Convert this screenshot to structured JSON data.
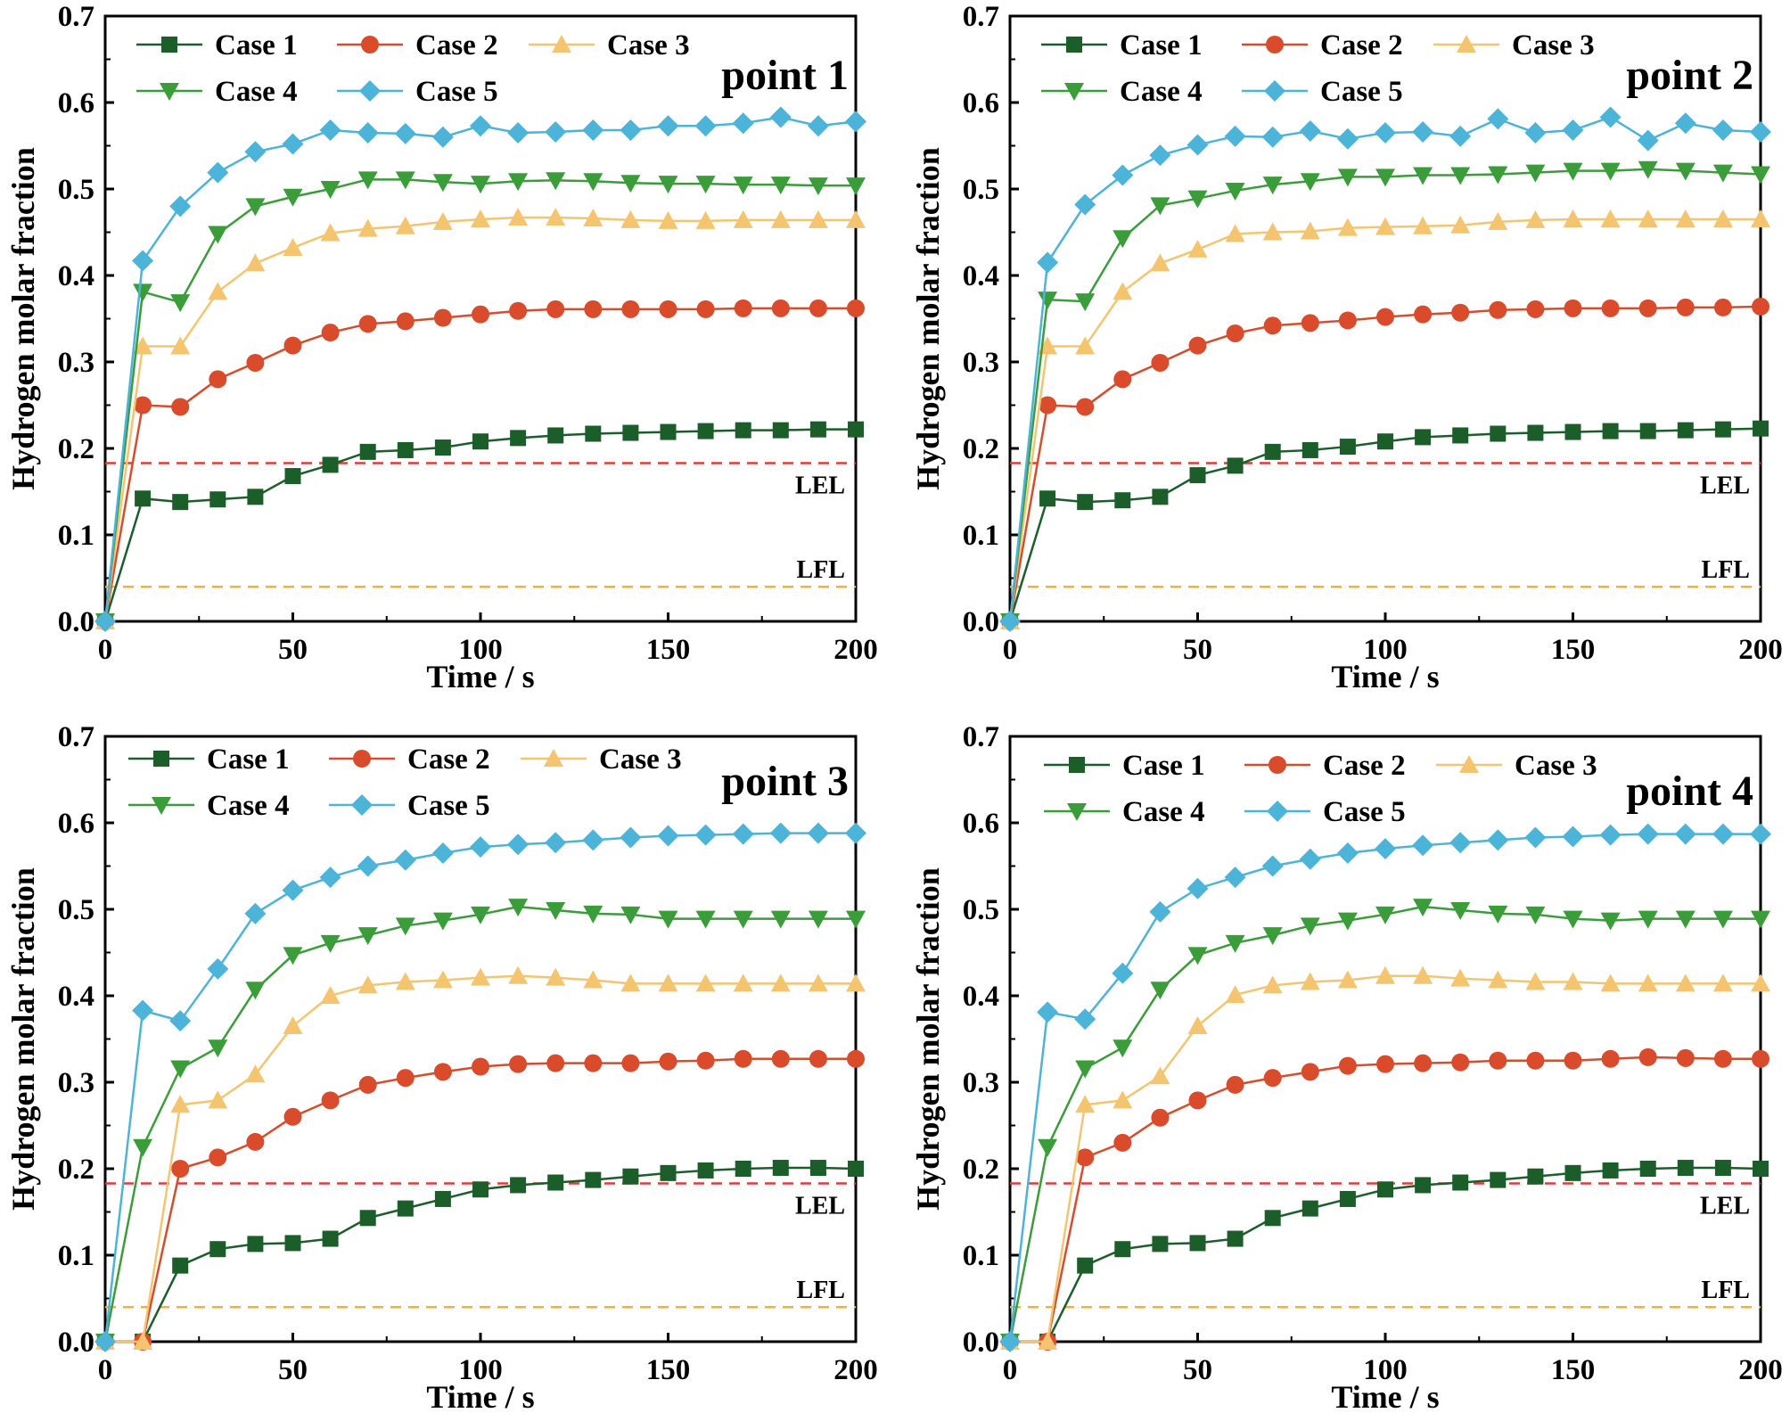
{
  "chart_data": [
    {
      "type": "line",
      "title": "point 1",
      "xlabel": "Time / s",
      "ylabel": "Hydrogen molar fraction",
      "xlim": [
        0,
        200
      ],
      "ylim": [
        0,
        0.7
      ],
      "xticks": [
        "0",
        "50",
        "100",
        "150",
        "200"
      ],
      "yticks": [
        "0.0",
        "0.1",
        "0.2",
        "0.3",
        "0.4",
        "0.5",
        "0.6",
        "0.7"
      ],
      "x": [
        0,
        10,
        20,
        30,
        40,
        50,
        60,
        70,
        80,
        90,
        100,
        110,
        120,
        130,
        140,
        150,
        160,
        170,
        180,
        190,
        200
      ],
      "series": [
        {
          "name": "Case 1",
          "color": "#1b5e2a",
          "marker": "square",
          "values": [
            0,
            0.142,
            0.138,
            0.141,
            0.144,
            0.168,
            0.181,
            0.196,
            0.198,
            0.201,
            0.208,
            0.212,
            0.215,
            0.217,
            0.218,
            0.219,
            0.22,
            0.221,
            0.221,
            0.222,
            0.222
          ]
        },
        {
          "name": "Case 2",
          "color": "#d94b2b",
          "marker": "circle",
          "values": [
            0,
            0.25,
            0.248,
            0.28,
            0.299,
            0.319,
            0.334,
            0.344,
            0.347,
            0.351,
            0.355,
            0.359,
            0.361,
            0.361,
            0.361,
            0.361,
            0.361,
            0.362,
            0.362,
            0.362,
            0.362
          ]
        },
        {
          "name": "Case 3",
          "color": "#f5c46e",
          "marker": "triangle-up",
          "values": [
            0,
            0.318,
            0.318,
            0.381,
            0.414,
            0.432,
            0.449,
            0.454,
            0.457,
            0.462,
            0.465,
            0.467,
            0.467,
            0.466,
            0.464,
            0.463,
            0.463,
            0.464,
            0.464,
            0.464,
            0.464
          ]
        },
        {
          "name": "Case 4",
          "color": "#3a9d3a",
          "marker": "triangle-down",
          "values": [
            0,
            0.381,
            0.369,
            0.448,
            0.48,
            0.491,
            0.5,
            0.511,
            0.511,
            0.508,
            0.506,
            0.509,
            0.51,
            0.509,
            0.507,
            0.506,
            0.506,
            0.505,
            0.505,
            0.504,
            0.504
          ]
        },
        {
          "name": "Case 5",
          "color": "#4cb3d9",
          "marker": "diamond",
          "values": [
            0,
            0.417,
            0.48,
            0.519,
            0.543,
            0.552,
            0.568,
            0.565,
            0.564,
            0.56,
            0.573,
            0.565,
            0.566,
            0.568,
            0.568,
            0.573,
            0.573,
            0.576,
            0.583,
            0.573,
            0.578
          ]
        }
      ],
      "reference_lines": [
        {
          "name": "LEL",
          "y": 0.183,
          "color": "#e53935"
        },
        {
          "name": "LFL",
          "y": 0.04,
          "color": "#f2b233"
        }
      ]
    },
    {
      "type": "line",
      "title": "point 2",
      "xlabel": "Time / s",
      "ylabel": "Hydrogen molar fraction",
      "xlim": [
        0,
        200
      ],
      "ylim": [
        0,
        0.7
      ],
      "xticks": [
        "0",
        "50",
        "100",
        "150",
        "200"
      ],
      "yticks": [
        "0.0",
        "0.1",
        "0.2",
        "0.3",
        "0.4",
        "0.5",
        "0.6",
        "0.7"
      ],
      "x": [
        0,
        10,
        20,
        30,
        40,
        50,
        60,
        70,
        80,
        90,
        100,
        110,
        120,
        130,
        140,
        150,
        160,
        170,
        180,
        190,
        200
      ],
      "series": [
        {
          "name": "Case 1",
          "color": "#1b5e2a",
          "marker": "square",
          "values": [
            0,
            0.142,
            0.138,
            0.14,
            0.144,
            0.169,
            0.18,
            0.196,
            0.198,
            0.202,
            0.208,
            0.213,
            0.215,
            0.217,
            0.218,
            0.219,
            0.22,
            0.22,
            0.221,
            0.222,
            0.223
          ]
        },
        {
          "name": "Case 2",
          "color": "#d94b2b",
          "marker": "circle",
          "values": [
            0,
            0.25,
            0.248,
            0.28,
            0.299,
            0.319,
            0.333,
            0.342,
            0.345,
            0.348,
            0.352,
            0.355,
            0.357,
            0.36,
            0.361,
            0.362,
            0.362,
            0.362,
            0.363,
            0.363,
            0.364
          ]
        },
        {
          "name": "Case 3",
          "color": "#f5c46e",
          "marker": "triangle-up",
          "values": [
            0,
            0.318,
            0.318,
            0.381,
            0.414,
            0.43,
            0.448,
            0.45,
            0.451,
            0.455,
            0.456,
            0.457,
            0.458,
            0.462,
            0.464,
            0.465,
            0.465,
            0.465,
            0.465,
            0.465,
            0.465
          ]
        },
        {
          "name": "Case 4",
          "color": "#3a9d3a",
          "marker": "triangle-down",
          "values": [
            0,
            0.372,
            0.37,
            0.443,
            0.481,
            0.489,
            0.498,
            0.505,
            0.509,
            0.514,
            0.514,
            0.516,
            0.516,
            0.517,
            0.519,
            0.521,
            0.521,
            0.523,
            0.521,
            0.519,
            0.517
          ]
        },
        {
          "name": "Case 5",
          "color": "#4cb3d9",
          "marker": "diamond",
          "values": [
            0,
            0.415,
            0.482,
            0.516,
            0.539,
            0.551,
            0.561,
            0.56,
            0.567,
            0.558,
            0.565,
            0.566,
            0.561,
            0.581,
            0.565,
            0.568,
            0.583,
            0.556,
            0.576,
            0.568,
            0.566
          ]
        }
      ],
      "reference_lines": [
        {
          "name": "LEL",
          "y": 0.183,
          "color": "#e53935"
        },
        {
          "name": "LFL",
          "y": 0.04,
          "color": "#f2b233"
        }
      ]
    },
    {
      "type": "line",
      "title": "point 3",
      "xlabel": "Time / s",
      "ylabel": "Hydrogen molar fraction",
      "xlim": [
        0,
        200
      ],
      "ylim": [
        0,
        0.7
      ],
      "xticks": [
        "0",
        "50",
        "100",
        "150",
        "200"
      ],
      "yticks": [
        "0.0",
        "0.1",
        "0.2",
        "0.3",
        "0.4",
        "0.5",
        "0.6",
        "0.7"
      ],
      "x": [
        0,
        10,
        20,
        30,
        40,
        50,
        60,
        70,
        80,
        90,
        100,
        110,
        120,
        130,
        140,
        150,
        160,
        170,
        180,
        190,
        200
      ],
      "series": [
        {
          "name": "Case 1",
          "color": "#1b5e2a",
          "marker": "square",
          "values": [
            0,
            0.0,
            0.088,
            0.107,
            0.113,
            0.114,
            0.119,
            0.143,
            0.154,
            0.165,
            0.176,
            0.181,
            0.184,
            0.187,
            0.191,
            0.195,
            0.198,
            0.2,
            0.201,
            0.201,
            0.2
          ]
        },
        {
          "name": "Case 2",
          "color": "#d94b2b",
          "marker": "circle",
          "values": [
            0,
            0.0,
            0.2,
            0.213,
            0.231,
            0.26,
            0.279,
            0.297,
            0.305,
            0.312,
            0.318,
            0.321,
            0.322,
            0.322,
            0.322,
            0.324,
            0.325,
            0.327,
            0.327,
            0.327,
            0.327
          ]
        },
        {
          "name": "Case 3",
          "color": "#f5c46e",
          "marker": "triangle-up",
          "values": [
            0,
            0.0,
            0.274,
            0.279,
            0.309,
            0.365,
            0.4,
            0.412,
            0.416,
            0.418,
            0.421,
            0.423,
            0.421,
            0.418,
            0.414,
            0.414,
            0.414,
            0.414,
            0.414,
            0.414,
            0.414
          ]
        },
        {
          "name": "Case 4",
          "color": "#3a9d3a",
          "marker": "triangle-down",
          "values": [
            0,
            0.225,
            0.316,
            0.34,
            0.407,
            0.447,
            0.461,
            0.47,
            0.481,
            0.487,
            0.494,
            0.503,
            0.499,
            0.495,
            0.494,
            0.489,
            0.489,
            0.489,
            0.489,
            0.489,
            0.489
          ]
        },
        {
          "name": "Case 5",
          "color": "#4cb3d9",
          "marker": "diamond",
          "values": [
            0,
            0.383,
            0.371,
            0.431,
            0.495,
            0.522,
            0.537,
            0.55,
            0.557,
            0.565,
            0.572,
            0.575,
            0.577,
            0.58,
            0.583,
            0.585,
            0.586,
            0.587,
            0.588,
            0.588,
            0.588
          ]
        }
      ],
      "reference_lines": [
        {
          "name": "LEL",
          "y": 0.183,
          "color": "#e53935"
        },
        {
          "name": "LFL",
          "y": 0.04,
          "color": "#f2b233"
        }
      ]
    },
    {
      "type": "line",
      "title": "point 4",
      "xlabel": "Time / s",
      "ylabel": "Hydrogen molar fraction",
      "xlim": [
        0,
        200
      ],
      "ylim": [
        0,
        0.7
      ],
      "xticks": [
        "0",
        "50",
        "100",
        "150",
        "200"
      ],
      "yticks": [
        "0.0",
        "0.1",
        "0.2",
        "0.3",
        "0.4",
        "0.5",
        "0.6",
        "0.7"
      ],
      "x": [
        0,
        10,
        20,
        30,
        40,
        50,
        60,
        70,
        80,
        90,
        100,
        110,
        120,
        130,
        140,
        150,
        160,
        170,
        180,
        190,
        200
      ],
      "series": [
        {
          "name": "Case 1",
          "color": "#1b5e2a",
          "marker": "square",
          "values": [
            0,
            0.0,
            0.088,
            0.107,
            0.113,
            0.114,
            0.119,
            0.143,
            0.154,
            0.165,
            0.176,
            0.181,
            0.184,
            0.187,
            0.191,
            0.195,
            0.198,
            0.2,
            0.201,
            0.201,
            0.2
          ]
        },
        {
          "name": "Case 2",
          "color": "#d94b2b",
          "marker": "circle",
          "values": [
            0,
            0.0,
            0.213,
            0.23,
            0.259,
            0.279,
            0.297,
            0.305,
            0.312,
            0.319,
            0.321,
            0.322,
            0.323,
            0.325,
            0.325,
            0.325,
            0.327,
            0.329,
            0.328,
            0.327,
            0.327
          ]
        },
        {
          "name": "Case 3",
          "color": "#f5c46e",
          "marker": "triangle-up",
          "values": [
            0,
            0.0,
            0.274,
            0.279,
            0.307,
            0.365,
            0.401,
            0.412,
            0.416,
            0.418,
            0.423,
            0.423,
            0.42,
            0.418,
            0.416,
            0.416,
            0.414,
            0.414,
            0.414,
            0.414,
            0.414
          ]
        },
        {
          "name": "Case 4",
          "color": "#3a9d3a",
          "marker": "triangle-down",
          "values": [
            0,
            0.225,
            0.316,
            0.34,
            0.407,
            0.447,
            0.461,
            0.47,
            0.481,
            0.487,
            0.494,
            0.503,
            0.499,
            0.495,
            0.494,
            0.489,
            0.487,
            0.489,
            0.489,
            0.489,
            0.489
          ]
        },
        {
          "name": "Case 5",
          "color": "#4cb3d9",
          "marker": "diamond",
          "values": [
            0,
            0.381,
            0.373,
            0.426,
            0.497,
            0.524,
            0.537,
            0.55,
            0.558,
            0.565,
            0.57,
            0.574,
            0.577,
            0.58,
            0.583,
            0.584,
            0.586,
            0.587,
            0.587,
            0.587,
            0.587
          ]
        }
      ],
      "reference_lines": [
        {
          "name": "LEL",
          "y": 0.183,
          "color": "#e53935"
        },
        {
          "name": "LFL",
          "y": 0.04,
          "color": "#f2b233"
        }
      ]
    }
  ]
}
